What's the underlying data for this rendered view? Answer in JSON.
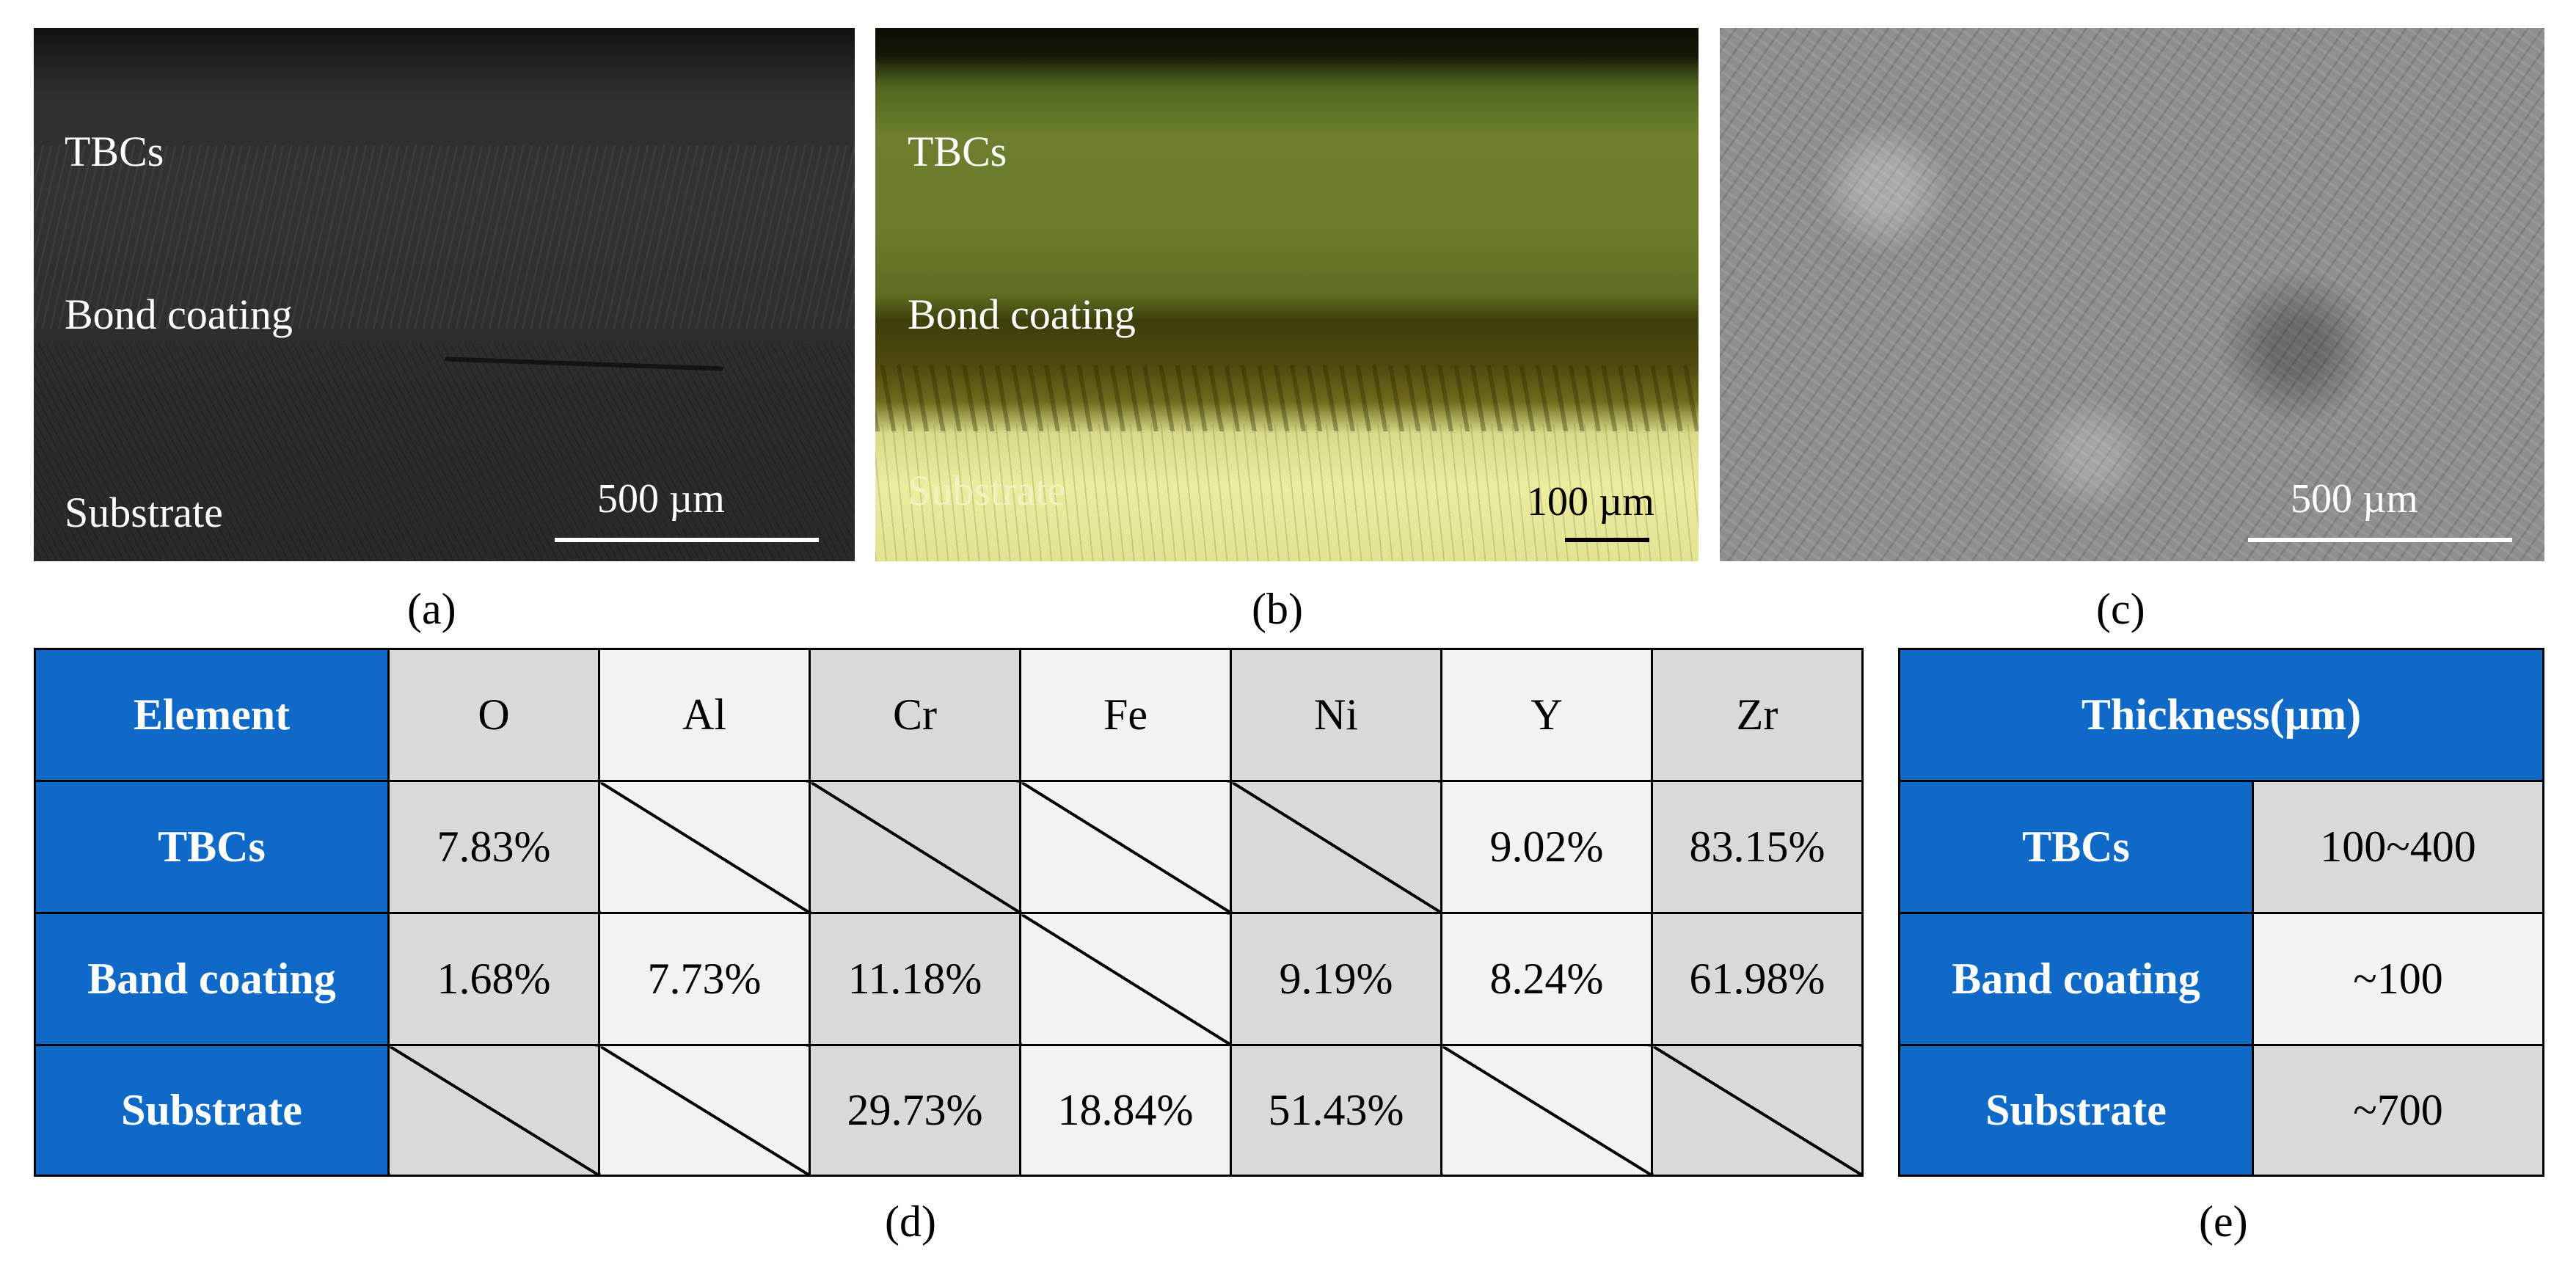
{
  "panel_a": {
    "labels": [
      "TBCs",
      "Bond coating",
      "Substrate"
    ],
    "scale": "500 µm",
    "caption": "(a)"
  },
  "panel_b": {
    "labels": [
      "TBCs",
      "Bond coating",
      "Substrate"
    ],
    "scale": "100 µm",
    "caption": "(b)"
  },
  "panel_c": {
    "scale": "500 µm",
    "caption": "(c)"
  },
  "table_d": {
    "caption": "(d)",
    "corner": "Element",
    "columns": [
      "O",
      "Al",
      "Cr",
      "Fe",
      "Ni",
      "Y",
      "Zr"
    ],
    "rows": [
      {
        "label": "TBCs",
        "values": [
          "7.83%",
          "",
          "",
          "",
          "",
          "9.02%",
          "83.15%"
        ]
      },
      {
        "label": "Band coating",
        "values": [
          "1.68%",
          "7.73%",
          "11.18%",
          "",
          "9.19%",
          "8.24%",
          "61.98%"
        ]
      },
      {
        "label": "Substrate",
        "values": [
          "",
          "",
          "29.73%",
          "18.84%",
          "51.43%",
          "",
          ""
        ]
      }
    ]
  },
  "table_e": {
    "caption": "(e)",
    "header": "Thickness(µm)",
    "rows": [
      {
        "label": "TBCs",
        "value": "100~400"
      },
      {
        "label": "Band coating",
        "value": "~100"
      },
      {
        "label": "Substrate",
        "value": "~700"
      }
    ]
  },
  "colors": {
    "header_blue": "#0f69c6",
    "cell_gray": "#d9d9d9",
    "cell_light": "#f2f2f2"
  }
}
